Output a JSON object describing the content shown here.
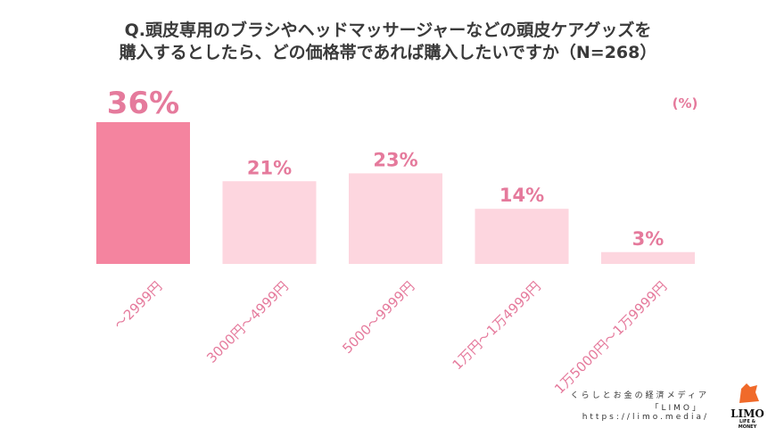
{
  "title_lines": [
    "Q.頭皮専用のブラシやヘッドマッサージャーなどの頭皮ケアグッズを",
    "購入するとしたら、どの価格帯であれば購入したいですか（N=268）"
  ],
  "chart_data": {
    "type": "bar",
    "title": "Q.頭皮専用のブラシやヘッドマッサージャーなどの頭皮ケアグッズを購入するとしたら、どの価格帯であれば購入したいですか（N=268）",
    "unit_label": "(%)",
    "categories": [
      "～2999円",
      "3000円～4999円",
      "5000～9999円",
      "1万円～1万4999円",
      "1万5000円～1万9999円"
    ],
    "values": [
      36,
      21,
      23,
      14,
      3
    ],
    "value_labels": [
      "36%",
      "21%",
      "23%",
      "14%",
      "3%"
    ],
    "ylim": [
      0,
      40
    ],
    "highlight_index": 0,
    "colors": {
      "highlight": "#f4849f",
      "normal": "#fdd6df",
      "label": "#e57a9c"
    }
  },
  "footer": {
    "tagline": "くらしとお金の経済メディア",
    "brand": "「LIMO」",
    "url": "https://limo.media/",
    "logo_text": "LIMO",
    "logo_sub": "LIFE & MONEY"
  }
}
